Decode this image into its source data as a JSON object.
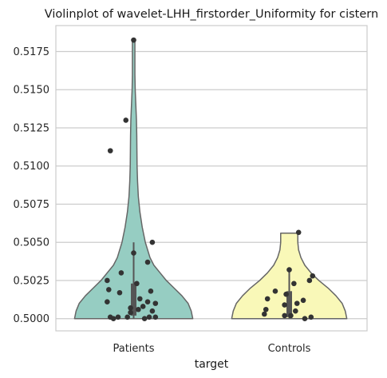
{
  "chart_data": {
    "type": "violin",
    "title": "Violinplot of wavelet-LHH_firstorder_Uniformity for cistern",
    "xlabel": "target",
    "ylabel": "",
    "categories": [
      "Patients",
      "Controls"
    ],
    "ylim": [
      0.4992,
      0.5192
    ],
    "yticks": [
      0.5,
      0.5025,
      0.505,
      0.5075,
      0.51,
      0.5125,
      0.515,
      0.5175
    ],
    "ytick_labels": [
      "0.5000",
      "0.5025",
      "0.5050",
      "0.5075",
      "0.5100",
      "0.5125",
      "0.5150",
      "0.5175"
    ],
    "grid": "horizontal",
    "colors": {
      "Patients": "#96cdc2",
      "Controls": "#f9f8b8",
      "outline": "#666666",
      "points": "#333333",
      "box": "#555555",
      "grid": "#cccccc"
    },
    "box_stats": {
      "Patients": {
        "whisker_low": 0.5,
        "q1": 0.5002,
        "median": 0.5008,
        "q3": 0.5023,
        "whisker_high": 0.505
      },
      "Controls": {
        "whisker_low": 0.5,
        "q1": 0.5001,
        "median": 0.5008,
        "q3": 0.5018,
        "whisker_high": 0.5033
      }
    },
    "violin_profile": {
      "Patients": [
        [
          0.5,
          0.38
        ],
        [
          0.5005,
          0.37
        ],
        [
          0.501,
          0.35
        ],
        [
          0.5015,
          0.31
        ],
        [
          0.502,
          0.26
        ],
        [
          0.5025,
          0.21
        ],
        [
          0.503,
          0.17
        ],
        [
          0.5035,
          0.13
        ],
        [
          0.504,
          0.105
        ],
        [
          0.505,
          0.075
        ],
        [
          0.506,
          0.055
        ],
        [
          0.507,
          0.04
        ],
        [
          0.508,
          0.03
        ],
        [
          0.509,
          0.025
        ],
        [
          0.51,
          0.022
        ],
        [
          0.511,
          0.021
        ],
        [
          0.512,
          0.02
        ],
        [
          0.513,
          0.018
        ],
        [
          0.514,
          0.014
        ],
        [
          0.515,
          0.01
        ],
        [
          0.516,
          0.008
        ],
        [
          0.517,
          0.008
        ],
        [
          0.5182,
          0.008
        ]
      ],
      "Controls": [
        [
          0.5,
          0.37
        ],
        [
          0.5005,
          0.36
        ],
        [
          0.501,
          0.34
        ],
        [
          0.5015,
          0.3
        ],
        [
          0.502,
          0.25
        ],
        [
          0.5025,
          0.19
        ],
        [
          0.503,
          0.14
        ],
        [
          0.5035,
          0.1
        ],
        [
          0.504,
          0.075
        ],
        [
          0.5045,
          0.06
        ],
        [
          0.505,
          0.055
        ],
        [
          0.5056,
          0.055
        ]
      ]
    },
    "points": {
      "Patients": [
        {
          "x": 0.0,
          "y": 0.51825
        },
        {
          "x": -0.15,
          "y": 0.511
        },
        {
          "x": -0.05,
          "y": 0.513
        },
        {
          "x": 0.12,
          "y": 0.505
        },
        {
          "x": 0.0,
          "y": 0.5043
        },
        {
          "x": 0.09,
          "y": 0.5037
        },
        {
          "x": -0.08,
          "y": 0.503
        },
        {
          "x": -0.17,
          "y": 0.5025
        },
        {
          "x": 0.02,
          "y": 0.5023
        },
        {
          "x": -0.16,
          "y": 0.5019
        },
        {
          "x": 0.11,
          "y": 0.5018
        },
        {
          "x": -0.09,
          "y": 0.5017
        },
        {
          "x": 0.04,
          "y": 0.5013
        },
        {
          "x": -0.17,
          "y": 0.5011
        },
        {
          "x": 0.09,
          "y": 0.5011
        },
        {
          "x": 0.14,
          "y": 0.501
        },
        {
          "x": 0.06,
          "y": 0.5008
        },
        {
          "x": -0.02,
          "y": 0.5007
        },
        {
          "x": 0.03,
          "y": 0.5006
        },
        {
          "x": 0.12,
          "y": 0.5005
        },
        {
          "x": -0.02,
          "y": 0.5004
        },
        {
          "x": -0.15,
          "y": 0.5001
        },
        {
          "x": -0.1,
          "y": 0.5001
        },
        {
          "x": -0.04,
          "y": 0.5001
        },
        {
          "x": 0.1,
          "y": 0.5001
        },
        {
          "x": 0.14,
          "y": 0.5001
        },
        {
          "x": 0.07,
          "y": 0.5
        },
        {
          "x": -0.13,
          "y": 0.5
        }
      ],
      "Controls": [
        {
          "x": 0.06,
          "y": 0.50565
        },
        {
          "x": 0.0,
          "y": 0.5032
        },
        {
          "x": 0.15,
          "y": 0.5028
        },
        {
          "x": 0.13,
          "y": 0.5025
        },
        {
          "x": 0.03,
          "y": 0.5023
        },
        {
          "x": -0.09,
          "y": 0.5018
        },
        {
          "x": -0.02,
          "y": 0.5016
        },
        {
          "x": -0.14,
          "y": 0.5013
        },
        {
          "x": 0.09,
          "y": 0.5012
        },
        {
          "x": 0.05,
          "y": 0.501
        },
        {
          "x": -0.03,
          "y": 0.5009
        },
        {
          "x": -0.15,
          "y": 0.5006
        },
        {
          "x": 0.04,
          "y": 0.5005
        },
        {
          "x": -0.16,
          "y": 0.5003
        },
        {
          "x": -0.03,
          "y": 0.5002
        },
        {
          "x": 0.01,
          "y": 0.5002
        },
        {
          "x": 0.14,
          "y": 0.5001
        },
        {
          "x": 0.1,
          "y": 0.5
        }
      ]
    }
  }
}
